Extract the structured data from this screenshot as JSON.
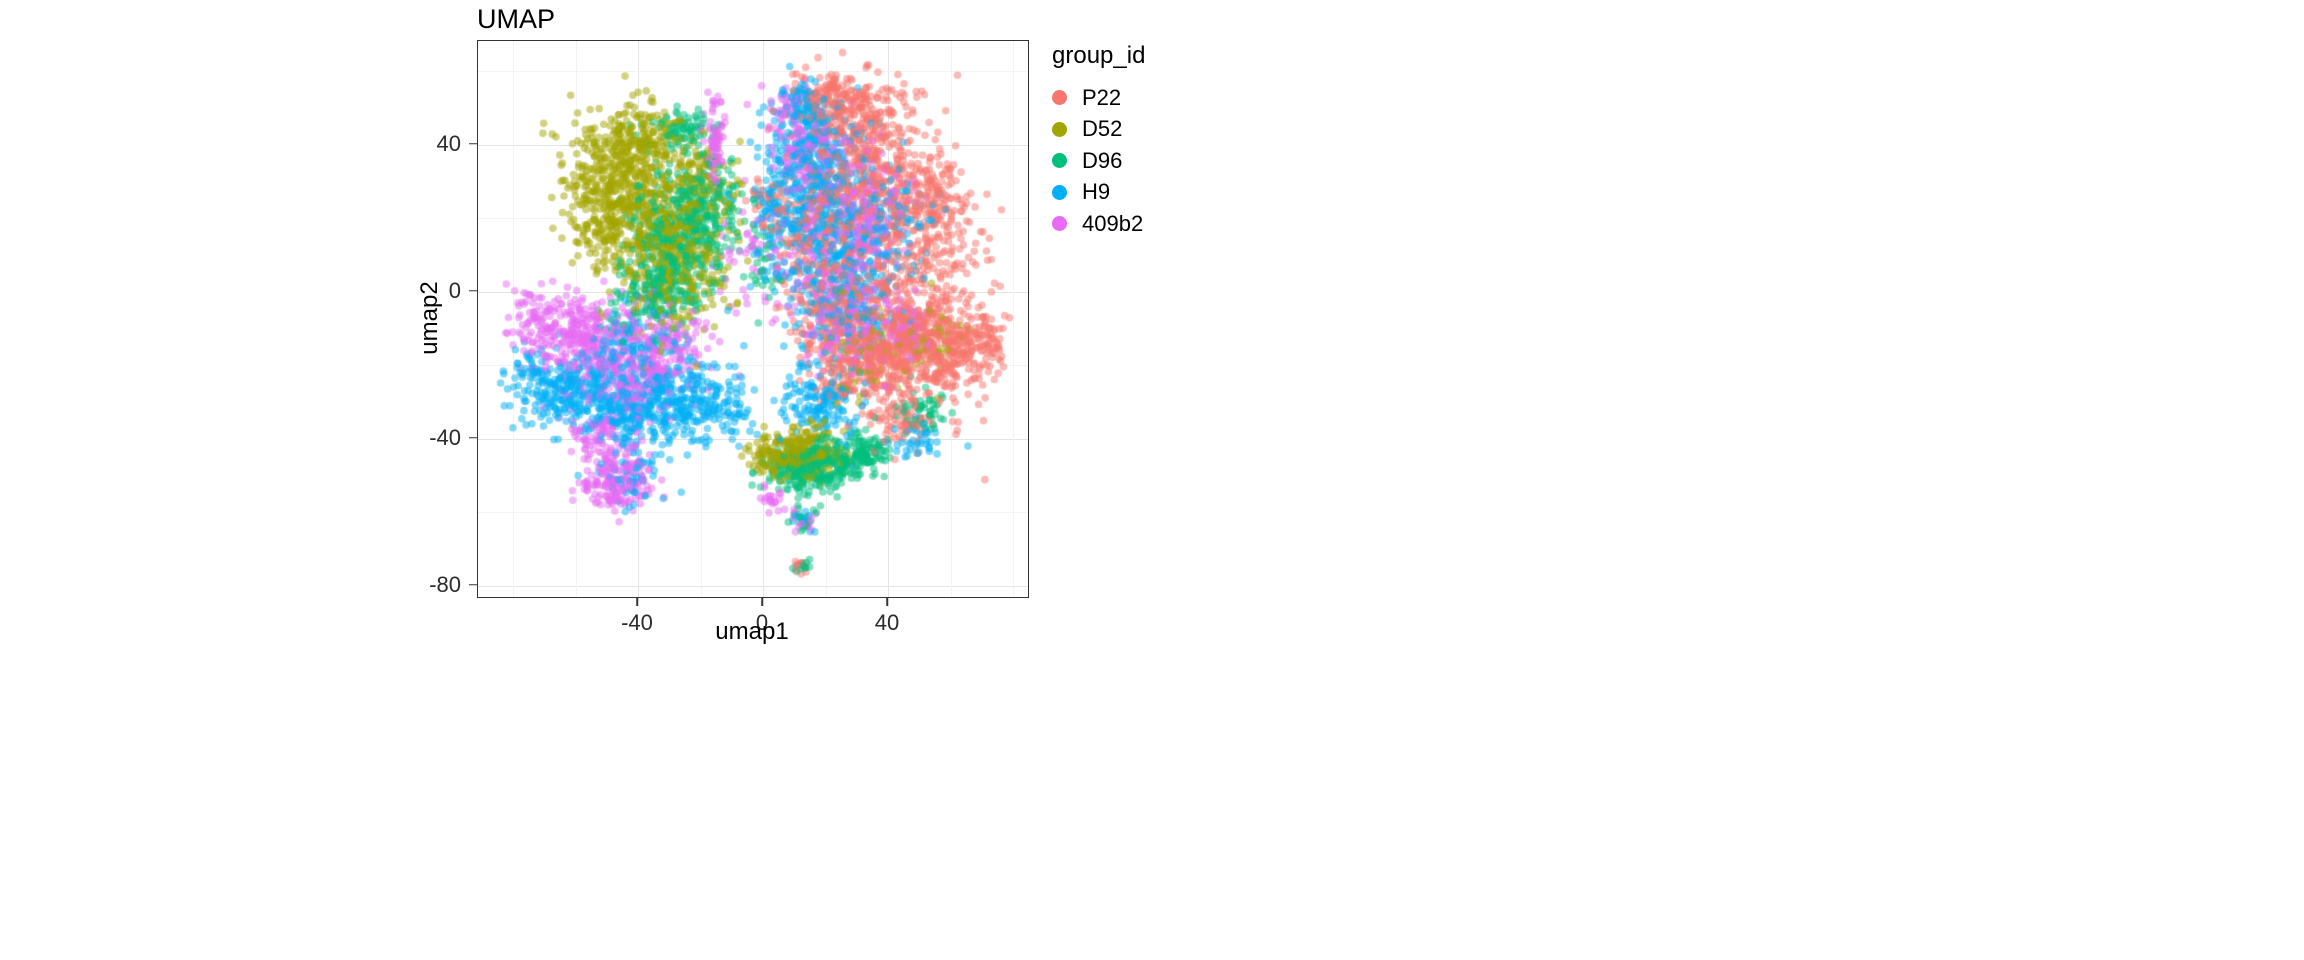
{
  "title": "UMAP",
  "axes": {
    "x": {
      "label": "umap1",
      "domain": [
        -91.2,
        84.8
      ],
      "ticks": [
        -40,
        0,
        40
      ],
      "minor_ticks": [
        -80,
        -60,
        -20,
        20,
        60,
        80
      ]
    },
    "y": {
      "label": "umap2",
      "domain": [
        -83.1,
        68.3
      ],
      "ticks": [
        40,
        0,
        -40,
        -80
      ],
      "minor_ticks": [
        60,
        20,
        -20,
        -60
      ]
    }
  },
  "legend": {
    "title": "group_id",
    "position": "right"
  },
  "groups": [
    {
      "id": "P22",
      "color": "#F8766D"
    },
    {
      "id": "D52",
      "color": "#A3A500"
    },
    {
      "id": "D96",
      "color": "#00BF7D"
    },
    {
      "id": "H9",
      "color": "#00B0F6"
    },
    {
      "id": "409b2",
      "color": "#E76BF3"
    }
  ],
  "theme": {
    "panel_border": "#333333",
    "grid_major": "#e4e4e4",
    "grid_minor": "#f3f3f3",
    "tick_text": "#2b2b2b",
    "text": "#000000",
    "background": "#ffffff"
  },
  "chart_data": {
    "type": "scatter",
    "title": "UMAP",
    "xlabel": "umap1",
    "ylabel": "umap2",
    "xlim": [
      -91,
      85
    ],
    "ylim": [
      -83,
      68
    ],
    "grid": true,
    "legend_title": "group_id",
    "legend_position": "right",
    "point_alpha": 0.5,
    "point_radius_px": 3.8,
    "series": [
      {
        "name": "P22",
        "color": "#F8766D",
        "clusters": [
          [
            52,
            5,
            9,
            18,
            350
          ],
          [
            58,
            -18,
            6,
            6,
            150
          ],
          [
            66,
            -13,
            5,
            5,
            100
          ],
          [
            73,
            -15,
            3,
            4,
            40
          ],
          [
            30,
            46,
            9,
            6,
            250
          ],
          [
            38,
            30,
            8,
            8,
            200
          ],
          [
            35,
            -20,
            9,
            6,
            300
          ],
          [
            25,
            -8,
            8,
            8,
            200
          ],
          [
            55,
            25,
            5,
            6,
            100
          ],
          [
            20,
            25,
            8,
            8,
            150
          ],
          [
            45,
            -35,
            5,
            3,
            60
          ],
          [
            10,
            15,
            5,
            8,
            60
          ],
          [
            22,
            54,
            6,
            3,
            100
          ],
          [
            12,
            -75,
            1.3,
            1.3,
            10
          ],
          [
            0,
            27,
            2.5,
            3,
            20
          ],
          [
            30,
            10,
            9,
            10,
            150
          ],
          [
            45,
            -10,
            6,
            6,
            120
          ]
        ]
      },
      {
        "name": "D52",
        "color": "#A3A500",
        "clusters": [
          [
            -45,
            32,
            9,
            8,
            350
          ],
          [
            -33,
            20,
            10,
            9,
            300
          ],
          [
            -27,
            3,
            8,
            8,
            200
          ],
          [
            -50,
            18,
            7,
            6,
            150
          ],
          [
            -20,
            30,
            6,
            6,
            100
          ],
          [
            -38,
            42,
            6,
            4,
            120
          ],
          [
            8,
            -45,
            6,
            3,
            200
          ],
          [
            16,
            -43,
            6,
            3,
            120
          ],
          [
            35,
            -15,
            10,
            8,
            60
          ],
          [
            55,
            -12,
            5,
            4,
            40
          ]
        ]
      },
      {
        "name": "D96",
        "color": "#00BF7D",
        "clusters": [
          [
            -30,
            10,
            8,
            8,
            250
          ],
          [
            -22,
            22,
            7,
            7,
            180
          ],
          [
            -25,
            44,
            5,
            3,
            80
          ],
          [
            -35,
            -2,
            7,
            5,
            120
          ],
          [
            14,
            -49,
            7,
            3,
            200
          ],
          [
            24,
            -46,
            7,
            3,
            140
          ],
          [
            33,
            -43,
            4,
            3,
            70
          ],
          [
            50,
            -33,
            4,
            3,
            50
          ],
          [
            12,
            -75,
            1.3,
            1.3,
            12
          ],
          [
            13,
            -62,
            2,
            2,
            15
          ],
          [
            -15,
            25,
            4,
            5,
            60
          ],
          [
            0,
            5,
            3,
            6,
            30
          ]
        ]
      },
      {
        "name": "H9",
        "color": "#00B0F6",
        "clusters": [
          [
            -60,
            -27,
            7,
            5,
            200
          ],
          [
            -45,
            -32,
            8,
            5,
            200
          ],
          [
            -30,
            -28,
            9,
            6,
            180
          ],
          [
            -18,
            -32,
            8,
            5,
            150
          ],
          [
            -40,
            -15,
            8,
            6,
            120
          ],
          [
            -72,
            -25,
            5,
            5,
            80
          ],
          [
            22,
            15,
            10,
            12,
            350
          ],
          [
            12,
            30,
            7,
            8,
            200
          ],
          [
            18,
            42,
            6,
            5,
            120
          ],
          [
            28,
            -5,
            9,
            7,
            150
          ],
          [
            18,
            -30,
            7,
            5,
            150
          ],
          [
            40,
            20,
            7,
            7,
            100
          ],
          [
            -42,
            -50,
            5,
            4,
            60
          ],
          [
            3,
            20,
            3,
            6,
            40
          ],
          [
            13,
            -62,
            1.5,
            1.5,
            12
          ],
          [
            12,
            50,
            5,
            4,
            80
          ],
          [
            50,
            -40,
            5,
            3,
            40
          ]
        ]
      },
      {
        "name": "409b2",
        "color": "#E76BF3",
        "clusters": [
          [
            -58,
            -12,
            8,
            6,
            250
          ],
          [
            -45,
            -22,
            8,
            6,
            200
          ],
          [
            -30,
            -15,
            8,
            6,
            150
          ],
          [
            -73,
            -8,
            5,
            5,
            80
          ],
          [
            -15.5,
            40,
            1.6,
            6,
            80
          ],
          [
            -45,
            -50,
            6,
            4,
            120
          ],
          [
            -52,
            -40,
            5,
            4,
            80
          ],
          [
            -48,
            -54,
            5,
            2.5,
            60
          ],
          [
            25,
            8,
            10,
            12,
            250
          ],
          [
            15,
            38,
            6,
            6,
            120
          ],
          [
            35,
            25,
            7,
            7,
            100
          ],
          [
            30,
            -12,
            8,
            6,
            100
          ],
          [
            47,
            -10,
            4,
            4,
            60
          ],
          [
            3,
            -57,
            2,
            1.5,
            20
          ],
          [
            13,
            -63,
            2,
            2,
            15
          ],
          [
            -5,
            10,
            4,
            8,
            40
          ],
          [
            8,
            50,
            4,
            3,
            40
          ]
        ]
      }
    ]
  }
}
